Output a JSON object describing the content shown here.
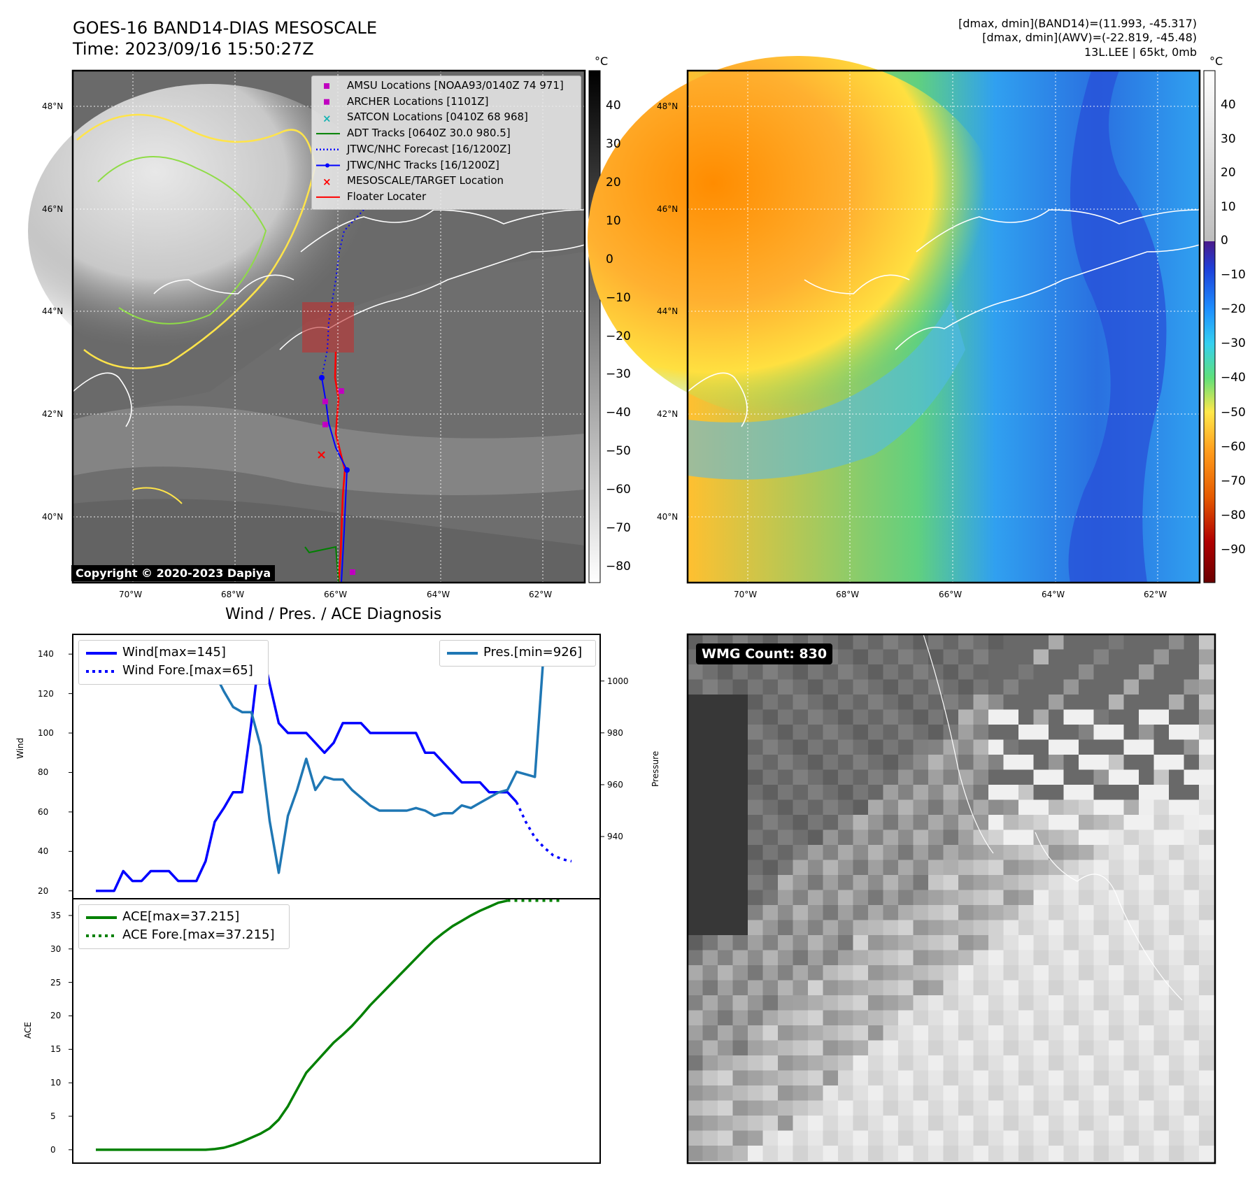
{
  "header": {
    "title_line1": "GOES-16 BAND14-DIAS MESOSCALE",
    "title_line2": "Time: 2023/09/16 15:50:27Z",
    "info_line1": "[dmax, dmin](BAND14)=(11.993, -45.317)",
    "info_line2": "[dmax, dmin](AWV)=(-22.819, -45.48)",
    "info_line3": "13L.LEE | 65kt, 0mb"
  },
  "map_panel": {
    "lat_ticks": [
      "48°N",
      "46°N",
      "44°N",
      "42°N",
      "40°N"
    ],
    "lon_ticks": [
      "70°W",
      "68°W",
      "66°W",
      "64°W",
      "62°W"
    ],
    "copyright": "Copyright © 2020-2023 Dapiya",
    "legend": [
      {
        "label": "AMSU Locations [NOAA93/0140Z 74 971]",
        "color": "#c000c0",
        "marker": "square"
      },
      {
        "label": "ARCHER Locations [1101Z]",
        "color": "#c000c0",
        "marker": "square"
      },
      {
        "label": "SATCON Locations [0410Z 68 968]",
        "color": "#17b3b3",
        "marker": "x"
      },
      {
        "label": "ADT Tracks [0640Z 30.0 980.5]",
        "color": "#008000",
        "marker": "line"
      },
      {
        "label": "JTWC/NHC Forecast [16/1200Z]",
        "color": "#0000ff",
        "marker": "dotted"
      },
      {
        "label": "JTWC/NHC Tracks [16/1200Z]",
        "color": "#0000ff",
        "marker": "line-dot"
      },
      {
        "label": "MESOSCALE/TARGET Location",
        "color": "#ff0000",
        "marker": "x"
      },
      {
        "label": "Floater Locater",
        "color": "#ff0000",
        "marker": "line"
      }
    ],
    "colorbar_unit": "°C",
    "colorbar_ticks": [
      "40",
      "30",
      "20",
      "10",
      "0",
      "−10",
      "−20",
      "−30",
      "−40",
      "−50",
      "−60",
      "−70",
      "−80"
    ]
  },
  "wv_panel": {
    "lat_ticks": [
      "48°N",
      "46°N",
      "44°N",
      "42°N",
      "40°N"
    ],
    "lon_ticks": [
      "70°W",
      "68°W",
      "66°W",
      "64°W",
      "62°W"
    ],
    "colorbar_unit": "°C",
    "colorbar_ticks": [
      "40",
      "30",
      "20",
      "10",
      "0",
      "−10",
      "−20",
      "−30",
      "−40",
      "−50",
      "−60",
      "−70",
      "−80",
      "−90"
    ]
  },
  "diag_title": "Wind / Pres. / ACE Diagnosis",
  "wmg_label": "WMG Count: 830",
  "chart_data": [
    {
      "type": "line",
      "title": "Wind / Pres. / ACE Diagnosis",
      "ylabel": "Wind",
      "y2label": "Pressure",
      "ylim": [
        16,
        150
      ],
      "y2lim": [
        916,
        1018
      ],
      "yticks": [
        "140",
        "120",
        "100",
        "80",
        "60",
        "40",
        "20"
      ],
      "y2ticks": [
        "1000",
        "980",
        "960",
        "940"
      ],
      "series": [
        {
          "name": "Wind[max=145]",
          "color": "#0000ff",
          "style": "solid",
          "values": [
            20,
            20,
            20,
            30,
            25,
            25,
            30,
            30,
            30,
            25,
            25,
            25,
            35,
            55,
            62,
            70,
            70,
            105,
            145,
            125,
            105,
            100,
            100,
            100,
            95,
            90,
            95,
            105,
            105,
            105,
            100,
            100,
            100,
            100,
            100,
            100,
            90,
            90,
            85,
            80,
            75,
            75,
            75,
            70,
            70,
            70,
            65
          ]
        },
        {
          "name": "Wind Fore.[max=65]",
          "color": "#0000ff",
          "style": "dotted",
          "start_index": 46,
          "values": [
            65,
            55,
            47,
            42,
            38,
            36,
            35
          ]
        },
        {
          "name": "Pres.[min=926]",
          "color": "#1f77b4",
          "style": "solid",
          "axis": "right",
          "values": [
            1012,
            1012,
            1011,
            1011,
            1011,
            1011,
            1011,
            1011,
            1011,
            1012,
            1011,
            1011,
            1008,
            1003,
            996,
            990,
            988,
            988,
            975,
            946,
            926,
            948,
            958,
            970,
            958,
            963,
            962,
            962,
            958,
            955,
            952,
            950,
            950,
            950,
            950,
            951,
            950,
            948,
            949,
            949,
            952,
            951,
            953,
            955,
            957,
            958,
            965,
            964,
            963,
            1013
          ]
        }
      ],
      "legend_left_pos": "upper-left",
      "legend_right_pos": "upper-right"
    },
    {
      "type": "line",
      "ylabel": "ACE",
      "ylim": [
        -2,
        37.5
      ],
      "yticks": [
        "35",
        "30",
        "25",
        "20",
        "15",
        "10",
        "5",
        "0"
      ],
      "series": [
        {
          "name": "ACE[max=37.215]",
          "color": "#008000",
          "style": "solid",
          "values": [
            0,
            0,
            0,
            0,
            0,
            0,
            0,
            0,
            0,
            0,
            0,
            0,
            0,
            0.1,
            0.3,
            0.7,
            1.2,
            1.8,
            2.4,
            3.2,
            4.5,
            6.5,
            9.0,
            11.5,
            13.0,
            14.5,
            16.0,
            17.2,
            18.5,
            20.0,
            21.6,
            23.0,
            24.4,
            25.8,
            27.2,
            28.6,
            30.0,
            31.3,
            32.4,
            33.4,
            34.2,
            35.0,
            35.7,
            36.3,
            36.9,
            37.215
          ]
        },
        {
          "name": "ACE Fore.[max=37.215]",
          "color": "#008000",
          "style": "dotted",
          "start_index": 45,
          "values": [
            37.215,
            37.215,
            37.215,
            37.215,
            37.215,
            37.215,
            37.215
          ]
        }
      ],
      "legend_pos": "upper-left"
    }
  ]
}
